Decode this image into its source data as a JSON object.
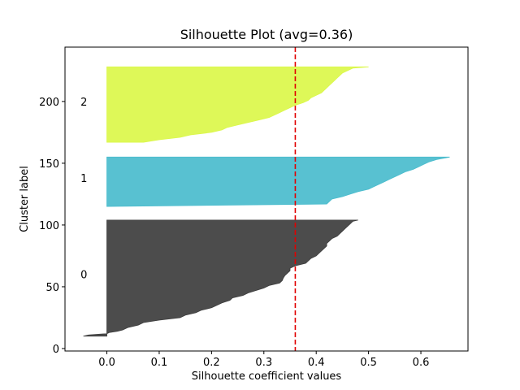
{
  "chart_data": {
    "type": "area",
    "title": "Silhouette Plot (avg=0.36)",
    "xlabel": "Silhouette coefficient values",
    "ylabel": "Cluster label",
    "xlim": [
      -0.08,
      0.69
    ],
    "ylim": [
      -2,
      244
    ],
    "xticks": [
      0.0,
      0.1,
      0.2,
      0.3,
      0.4,
      0.5,
      0.6
    ],
    "xtick_labels": [
      "0.0",
      "0.1",
      "0.2",
      "0.3",
      "0.4",
      "0.5",
      "0.6"
    ],
    "yticks": [
      0,
      50,
      100,
      150,
      200
    ],
    "ytick_labels": [
      "0",
      "50",
      "100",
      "150",
      "200"
    ],
    "grid": false,
    "average_silhouette": 0.36,
    "average_line_color": "#e00000",
    "clusters": [
      {
        "label": "0",
        "color": "#3d3d3d",
        "label_y": 60,
        "points": [
          [
            10,
            -0.045
          ],
          [
            11,
            -0.035
          ],
          [
            12,
            0.0
          ],
          [
            13,
            0.005
          ],
          [
            14,
            0.02
          ],
          [
            15,
            0.03
          ],
          [
            17,
            0.04
          ],
          [
            19,
            0.06
          ],
          [
            21,
            0.07
          ],
          [
            23,
            0.1
          ],
          [
            25,
            0.14
          ],
          [
            27,
            0.15
          ],
          [
            29,
            0.17
          ],
          [
            31,
            0.18
          ],
          [
            33,
            0.2
          ],
          [
            35,
            0.21
          ],
          [
            37,
            0.22
          ],
          [
            39,
            0.235
          ],
          [
            41,
            0.24
          ],
          [
            43,
            0.26
          ],
          [
            45,
            0.27
          ],
          [
            47,
            0.285
          ],
          [
            49,
            0.3
          ],
          [
            51,
            0.31
          ],
          [
            53,
            0.33
          ],
          [
            55,
            0.335
          ],
          [
            57,
            0.337
          ],
          [
            59,
            0.34
          ],
          [
            61,
            0.345
          ],
          [
            63,
            0.35
          ],
          [
            65,
            0.35
          ],
          [
            67,
            0.36
          ],
          [
            69,
            0.38
          ],
          [
            71,
            0.385
          ],
          [
            73,
            0.39
          ],
          [
            75,
            0.4
          ],
          [
            77,
            0.405
          ],
          [
            79,
            0.41
          ],
          [
            81,
            0.415
          ],
          [
            83,
            0.42
          ],
          [
            85,
            0.42
          ],
          [
            87,
            0.425
          ],
          [
            89,
            0.43
          ],
          [
            91,
            0.44
          ],
          [
            93,
            0.445
          ],
          [
            95,
            0.45
          ],
          [
            97,
            0.455
          ],
          [
            99,
            0.46
          ],
          [
            101,
            0.465
          ],
          [
            103,
            0.47
          ],
          [
            104,
            0.48
          ]
        ]
      },
      {
        "label": "1",
        "color": "#4abccd",
        "label_y": 138,
        "points": [
          [
            115,
            0.0
          ],
          [
            117,
            0.42
          ],
          [
            119,
            0.425
          ],
          [
            121,
            0.43
          ],
          [
            123,
            0.45
          ],
          [
            125,
            0.465
          ],
          [
            127,
            0.48
          ],
          [
            129,
            0.5
          ],
          [
            131,
            0.51
          ],
          [
            133,
            0.52
          ],
          [
            135,
            0.53
          ],
          [
            137,
            0.54
          ],
          [
            139,
            0.55
          ],
          [
            141,
            0.56
          ],
          [
            143,
            0.57
          ],
          [
            145,
            0.585
          ],
          [
            147,
            0.595
          ],
          [
            149,
            0.605
          ],
          [
            151,
            0.615
          ],
          [
            153,
            0.63
          ],
          [
            155,
            0.655
          ]
        ]
      },
      {
        "label": "2",
        "color": "#dbf74a",
        "label_y": 200,
        "points": [
          [
            167,
            0.07
          ],
          [
            169,
            0.1
          ],
          [
            171,
            0.14
          ],
          [
            173,
            0.16
          ],
          [
            175,
            0.2
          ],
          [
            177,
            0.22
          ],
          [
            179,
            0.23
          ],
          [
            181,
            0.25
          ],
          [
            183,
            0.27
          ],
          [
            185,
            0.29
          ],
          [
            187,
            0.31
          ],
          [
            189,
            0.32
          ],
          [
            191,
            0.33
          ],
          [
            193,
            0.34
          ],
          [
            195,
            0.35
          ],
          [
            197,
            0.36
          ],
          [
            199,
            0.375
          ],
          [
            201,
            0.385
          ],
          [
            203,
            0.39
          ],
          [
            205,
            0.4
          ],
          [
            207,
            0.41
          ],
          [
            209,
            0.415
          ],
          [
            211,
            0.42
          ],
          [
            213,
            0.425
          ],
          [
            215,
            0.43
          ],
          [
            217,
            0.435
          ],
          [
            219,
            0.44
          ],
          [
            221,
            0.445
          ],
          [
            223,
            0.45
          ],
          [
            225,
            0.46
          ],
          [
            227,
            0.47
          ],
          [
            228,
            0.5
          ]
        ]
      }
    ]
  }
}
